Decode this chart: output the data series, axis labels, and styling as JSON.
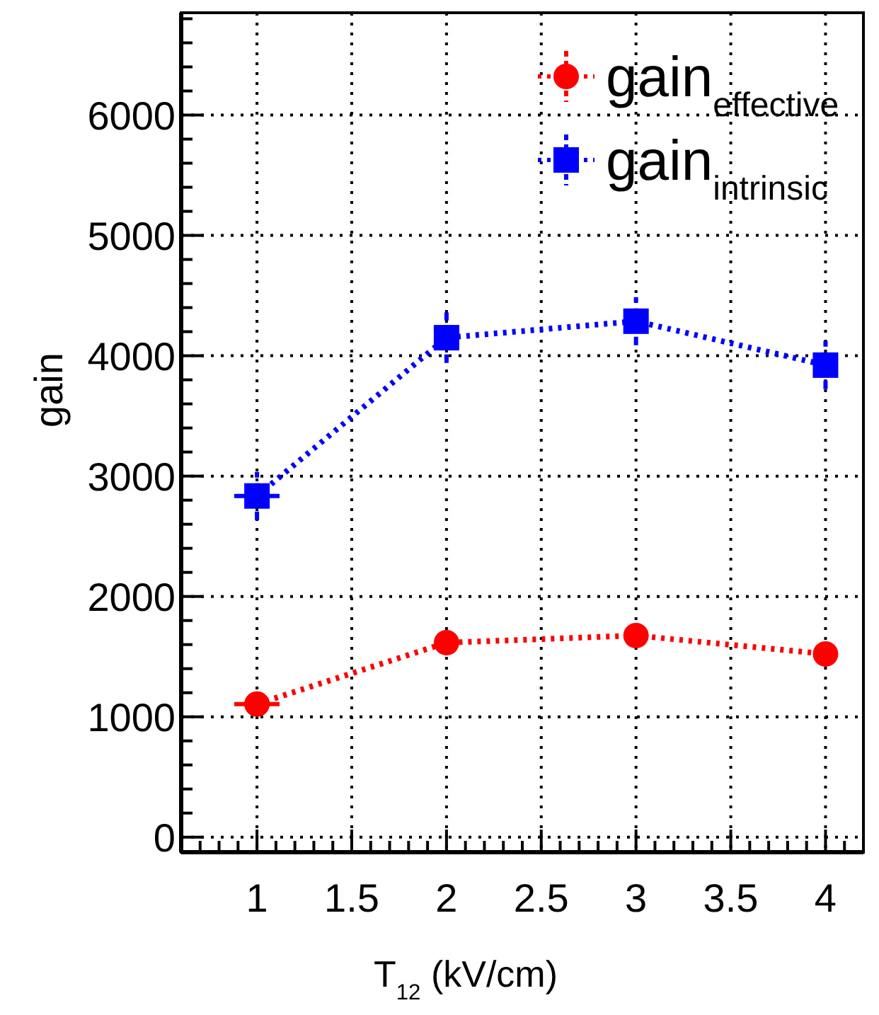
{
  "chart_data": {
    "type": "line",
    "xlabel": "T$_{12}$ (kV/cm)",
    "ylabel": "gain",
    "x": [
      1,
      2,
      3,
      4
    ],
    "series": [
      {
        "name": "gain$_{effective}$",
        "color": "#ff0000",
        "marker": "circle",
        "values": [
          1106,
          1616,
          1675,
          1522
        ],
        "xerrors": [
          0.12,
          null,
          null,
          null
        ]
      },
      {
        "name": "gain$_{intrinsic}$",
        "color": "#0000ff",
        "marker": "square",
        "values": [
          2835,
          4150,
          4287,
          3922
        ],
        "errors": [
          200,
          210,
          200,
          200
        ],
        "xerrors": [
          0.12,
          null,
          null,
          null
        ]
      }
    ],
    "xlim": [
      0.6,
      4.2
    ],
    "ylim": [
      -125,
      6850
    ],
    "xticks": [
      {
        "value": 0.6,
        "label": null
      },
      {
        "value": 0.7,
        "label": null
      },
      {
        "value": 0.8,
        "label": null
      },
      {
        "value": 0.9,
        "label": null
      },
      1,
      {
        "value": 1.1,
        "label": null
      },
      {
        "value": 1.2,
        "label": null
      },
      {
        "value": 1.3,
        "label": null
      },
      {
        "value": 1.4,
        "label": null
      },
      1.5,
      {
        "value": 1.6,
        "label": null
      },
      {
        "value": 1.7,
        "label": null
      },
      {
        "value": 1.8,
        "label": null
      },
      {
        "value": 1.9,
        "label": null
      },
      2,
      {
        "value": 2.1,
        "label": null
      },
      {
        "value": 2.2,
        "label": null
      },
      {
        "value": 2.3,
        "label": null
      },
      {
        "value": 2.4,
        "label": null
      },
      2.5,
      {
        "value": 2.6,
        "label": null
      },
      {
        "value": 2.7,
        "label": null
      },
      {
        "value": 2.8,
        "label": null
      },
      {
        "value": 2.9,
        "label": null
      },
      3,
      {
        "value": 3.1,
        "label": null
      },
      {
        "value": 3.2,
        "label": null
      },
      {
        "value": 3.3,
        "label": null
      },
      {
        "value": 3.4,
        "label": null
      },
      3.5,
      {
        "value": 3.6,
        "label": null
      },
      {
        "value": 3.7,
        "label": null
      },
      {
        "value": 3.8,
        "label": null
      },
      {
        "value": 3.9,
        "label": null
      },
      4,
      {
        "value": 4.1,
        "label": null
      }
    ],
    "yticks": [
      0,
      {
        "value": 200,
        "label": null
      },
      {
        "value": 400,
        "label": null
      },
      {
        "value": 600,
        "label": null
      },
      {
        "value": 800,
        "label": null
      },
      1000,
      {
        "value": 1200,
        "label": null
      },
      {
        "value": 1400,
        "label": null
      },
      {
        "value": 1600,
        "label": null
      },
      {
        "value": 1800,
        "label": null
      },
      2000,
      {
        "value": 2200,
        "label": null
      },
      {
        "value": 2400,
        "label": null
      },
      {
        "value": 2600,
        "label": null
      },
      {
        "value": 2800,
        "label": null
      },
      3000,
      {
        "value": 3200,
        "label": null
      },
      {
        "value": 3400,
        "label": null
      },
      {
        "value": 3600,
        "label": null
      },
      {
        "value": 3800,
        "label": null
      },
      4000,
      {
        "value": 4200,
        "label": null
      },
      {
        "value": 4400,
        "label": null
      },
      {
        "value": 4600,
        "label": null
      },
      {
        "value": 4800,
        "label": null
      },
      5000,
      {
        "value": 5200,
        "label": null
      },
      {
        "value": 5400,
        "label": null
      },
      {
        "value": 5600,
        "label": null
      },
      {
        "value": 5800,
        "label": null
      },
      6000,
      {
        "value": 6200,
        "label": null
      },
      {
        "value": 6400,
        "label": null
      },
      {
        "value": 6600,
        "label": null
      },
      {
        "value": 6800,
        "label": null
      }
    ],
    "grid": true,
    "legend": "top right",
    "line_style": "dotted"
  }
}
